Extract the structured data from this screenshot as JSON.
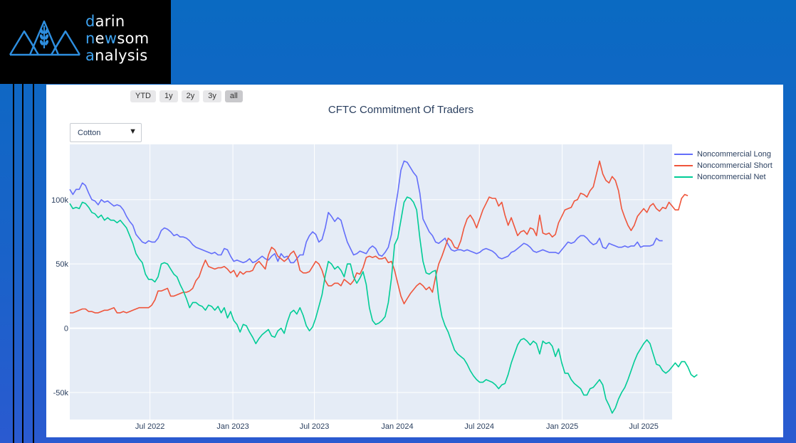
{
  "brand": {
    "line1_first": "d",
    "line1_rest": "arin",
    "line2_first": "n",
    "line2_mid": "e",
    "line2_w": "w",
    "line2_rest": "som",
    "line3_first": "a",
    "line3_rest": "nalysis"
  },
  "range_buttons": [
    "YTD",
    "1y",
    "2y",
    "3y",
    "all"
  ],
  "active_range": "all",
  "dropdown": {
    "selected": "Cotton"
  },
  "colors": {
    "long": "#636efa",
    "short": "#ef553b",
    "net": "#00cc96",
    "plot_bg": "#e5ecf6",
    "accent": "#3ea3f0"
  },
  "chart_data": {
    "type": "line",
    "title": "CFTC Commitment Of Traders",
    "x_ticks": [
      "Jul 2022",
      "Jan 2023",
      "Jul 2023",
      "Jan 2024",
      "Jul 2024",
      "Jan 2025",
      "Jul 2025"
    ],
    "y_ticks": [
      "-50k",
      "0",
      "50k",
      "100k"
    ],
    "y_tick_values": [
      -50000,
      0,
      50000,
      100000
    ],
    "ylim": [
      -71000,
      143000
    ],
    "xlim": [
      "2022-01-04",
      "2025-09-02"
    ],
    "grid": true,
    "legend_position": "top-right",
    "start_date": "2022-01-04",
    "step_days": 7,
    "series": [
      {
        "name": "Noncommercial Long",
        "color": "#636efa",
        "values": [
          108,
          104,
          108,
          108,
          113,
          111,
          105,
          100,
          99,
          96,
          100,
          98,
          99,
          97,
          95,
          96,
          95,
          92,
          87,
          83,
          80,
          73,
          70,
          67,
          66,
          68,
          67,
          67,
          70,
          76,
          78,
          77,
          75,
          72,
          73,
          71,
          71,
          70,
          68,
          65,
          63,
          62,
          61,
          60,
          59,
          58,
          59,
          57,
          57,
          62,
          61,
          56,
          52,
          53,
          52,
          51,
          52,
          54,
          51,
          52,
          54,
          56,
          54,
          53,
          56,
          58,
          52,
          58,
          55,
          56,
          51,
          51,
          54,
          57,
          57,
          67,
          72,
          75,
          73,
          67,
          69,
          78,
          90,
          87,
          83,
          86,
          84,
          75,
          67,
          62,
          57,
          58,
          60,
          59,
          58,
          62,
          64,
          62,
          57,
          56,
          59,
          63,
          73,
          90,
          105,
          123,
          130,
          129,
          125,
          121,
          118,
          105,
          85,
          80,
          75,
          72,
          67,
          66,
          68,
          70,
          65,
          61,
          60,
          61,
          61,
          60,
          61,
          60,
          59,
          58,
          59,
          61,
          62,
          61,
          60,
          58,
          55,
          54,
          55,
          56,
          59,
          60,
          62,
          64,
          66,
          65,
          63,
          60,
          59,
          60,
          61,
          60,
          59,
          59,
          59,
          58,
          61,
          64,
          67,
          66,
          67,
          70,
          72,
          72,
          70,
          67,
          65,
          66,
          70,
          63,
          62,
          66,
          65,
          64,
          63,
          63,
          64,
          63,
          64,
          64,
          67,
          63,
          64,
          64,
          64,
          65,
          70,
          68,
          68
        ]
      },
      {
        "name": "Noncommercial Short",
        "color": "#ef553b",
        "values": [
          12,
          12,
          13,
          14,
          15,
          15,
          13,
          13,
          12,
          12,
          13,
          14,
          14,
          15,
          16,
          12,
          12,
          13,
          12,
          13,
          14,
          15,
          16,
          16,
          16,
          16,
          18,
          22,
          29,
          29,
          30,
          31,
          25,
          25,
          26,
          27,
          28,
          28,
          29,
          31,
          37,
          40,
          47,
          53,
          48,
          47,
          46,
          47,
          47,
          48,
          46,
          43,
          45,
          40,
          44,
          42,
          44,
          44,
          45,
          50,
          52,
          49,
          46,
          57,
          63,
          61,
          56,
          54,
          52,
          54,
          58,
          60,
          55,
          45,
          43,
          43,
          44,
          48,
          52,
          50,
          45,
          37,
          33,
          33,
          35,
          35,
          33,
          38,
          36,
          34,
          37,
          43,
          42,
          47,
          55,
          56,
          55,
          56,
          54,
          54,
          55,
          51,
          52,
          45,
          35,
          25,
          19,
          23,
          27,
          30,
          33,
          35,
          33,
          30,
          32,
          28,
          40,
          50,
          56,
          63,
          70,
          68,
          63,
          62,
          68,
          78,
          85,
          88,
          84,
          78,
          85,
          92,
          97,
          102,
          101,
          101,
          95,
          98,
          88,
          80,
          86,
          79,
          72,
          75,
          76,
          73,
          78,
          77,
          72,
          88,
          74,
          73,
          74,
          71,
          73,
          82,
          87,
          92,
          93,
          94,
          99,
          100,
          105,
          104,
          102,
          107,
          110,
          120,
          130,
          120,
          115,
          113,
          118,
          115,
          107,
          93,
          86,
          80,
          76,
          80,
          87,
          90,
          93,
          90,
          95,
          97,
          93,
          91,
          94,
          93,
          98,
          95,
          92,
          92,
          101,
          104,
          103
        ]
      },
      {
        "name": "Noncommercial Net",
        "color": "#00cc96",
        "values": [
          97,
          93,
          94,
          93,
          98,
          97,
          94,
          90,
          89,
          86,
          88,
          84,
          86,
          84,
          84,
          82,
          84,
          81,
          78,
          72,
          66,
          58,
          54,
          51,
          42,
          38,
          38,
          36,
          40,
          50,
          51,
          50,
          46,
          42,
          40,
          34,
          29,
          23,
          16,
          20,
          20,
          18,
          17,
          14,
          18,
          17,
          14,
          17,
          12,
          16,
          8,
          13,
          6,
          3,
          -3,
          3,
          2,
          -3,
          -7,
          -12,
          -8,
          -5,
          -3,
          -1,
          -6,
          -7,
          -2,
          0,
          -4,
          5,
          12,
          14,
          11,
          16,
          10,
          2,
          -2,
          1,
          8,
          17,
          26,
          41,
          52,
          50,
          46,
          48,
          45,
          40,
          50,
          50,
          40,
          35,
          39,
          44,
          34,
          16,
          6,
          3,
          4,
          6,
          9,
          20,
          39,
          65,
          70,
          84,
          98,
          102,
          101,
          98,
          92,
          70,
          52,
          43,
          42,
          44,
          45,
          23,
          9,
          2,
          -3,
          -10,
          -17,
          -20,
          -22,
          -24,
          -28,
          -33,
          -37,
          -40,
          -42,
          -42,
          -40,
          -41,
          -42,
          -44,
          -47,
          -44,
          -43,
          -36,
          -27,
          -20,
          -13,
          -9,
          -8,
          -10,
          -13,
          -10,
          -12,
          -20,
          -10,
          -12,
          -11,
          -14,
          -22,
          -16,
          -27,
          -35,
          -35,
          -40,
          -43,
          -45,
          -47,
          -52,
          -52,
          -47,
          -46,
          -43,
          -40,
          -44,
          -55,
          -60,
          -66,
          -62,
          -55,
          -50,
          -46,
          -40,
          -33,
          -26,
          -20,
          -16,
          -12,
          -9,
          -12,
          -20,
          -28,
          -29,
          -33,
          -35,
          -33,
          -30,
          -27,
          -30,
          -26,
          -26,
          -30,
          -36,
          -38,
          -36
        ]
      }
    ]
  }
}
